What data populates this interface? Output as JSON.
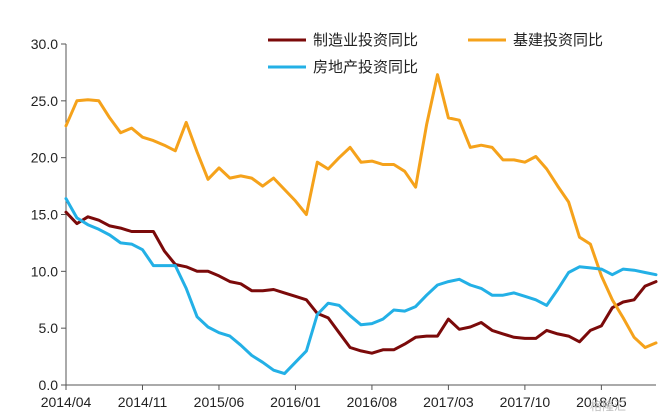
{
  "chart_data": {
    "type": "line",
    "title": "",
    "xlabel": "",
    "ylabel": "",
    "ylim": [
      0,
      30
    ],
    "yticks": [
      "0.0",
      "5.0",
      "10.0",
      "15.0",
      "20.0",
      "25.0",
      "30.0"
    ],
    "xtick_labels": [
      "2014/04",
      "2014/11",
      "2015/06",
      "2016/01",
      "2016/08",
      "2017/03",
      "2017/10",
      "2018/05"
    ],
    "xtick_index": [
      0,
      7,
      14,
      21,
      28,
      35,
      42,
      49
    ],
    "grid": false,
    "legend_position": "top",
    "series": [
      {
        "name": "制造业投资同比",
        "color": "#7b0a0a",
        "start_index": 0,
        "values": [
          15.2,
          14.2,
          14.8,
          14.5,
          14.0,
          13.8,
          13.5,
          13.5,
          13.5,
          11.8,
          10.6,
          10.4,
          10.0,
          10.0,
          9.6,
          9.1,
          8.9,
          8.3,
          8.3,
          8.4,
          8.1,
          7.8,
          7.5,
          6.3,
          5.9,
          4.6,
          3.3,
          3.0,
          2.8,
          3.1,
          3.1,
          3.6,
          4.2,
          4.3,
          4.3,
          5.8,
          4.9,
          5.1,
          5.5,
          4.8,
          4.5,
          4.2,
          4.1,
          4.1,
          4.8,
          4.5,
          4.3,
          3.8,
          4.8,
          5.2,
          6.8,
          7.3,
          7.5,
          8.7,
          9.1
        ]
      },
      {
        "name": "基建投资同比",
        "color": "#f5a21b",
        "start_index": 0,
        "values": [
          22.8,
          25.0,
          25.1,
          25.0,
          23.5,
          22.2,
          22.6,
          21.8,
          21.5,
          21.1,
          20.6,
          23.1,
          20.5,
          18.1,
          19.1,
          18.2,
          18.4,
          18.2,
          17.5,
          18.2,
          17.2,
          16.2,
          15.0,
          19.6,
          19.0,
          20.0,
          20.9,
          19.6,
          19.7,
          19.4,
          19.4,
          18.8,
          17.4,
          22.9,
          27.3,
          23.5,
          23.3,
          20.9,
          21.1,
          20.9,
          19.8,
          19.8,
          19.6,
          20.1,
          19.0,
          17.5,
          16.1,
          13.0,
          12.4,
          9.6,
          7.5,
          5.9,
          4.2,
          3.3,
          3.7
        ]
      },
      {
        "name": "房地产投资同比",
        "color": "#23b0e6",
        "start_index": 0,
        "values": [
          16.4,
          14.7,
          14.1,
          13.7,
          13.2,
          12.5,
          12.4,
          11.9,
          10.5,
          10.5,
          10.5,
          8.5,
          6.0,
          5.1,
          4.6,
          4.3,
          3.5,
          2.6,
          2.0,
          1.3,
          1.0,
          2.0,
          3.0,
          6.2,
          7.2,
          7.0,
          6.1,
          5.3,
          5.4,
          5.8,
          6.6,
          6.5,
          6.9,
          7.9,
          8.8,
          9.1,
          9.3,
          8.8,
          8.5,
          7.9,
          7.9,
          8.1,
          7.8,
          7.5,
          7.0,
          8.4,
          9.9,
          10.4,
          10.3,
          10.2,
          9.7,
          10.2,
          10.1,
          9.9,
          9.7
        ]
      }
    ]
  },
  "watermark": "格隆汇"
}
